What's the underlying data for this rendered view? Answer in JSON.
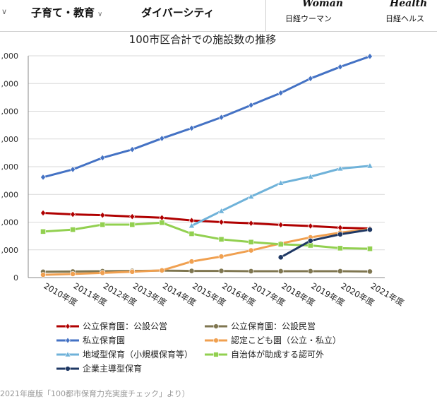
{
  "nav": {
    "left_chevron": "∨",
    "items": [
      {
        "label": "子育て・教育",
        "chevron": "∨"
      },
      {
        "label": "ダイバーシティ"
      }
    ],
    "brands": [
      {
        "logo": "Woman",
        "label": "日経ウーマン"
      },
      {
        "logo": "Health",
        "label": "日経ヘルス"
      }
    ]
  },
  "chart_data": {
    "type": "line",
    "title": "100市区合計での施設数の推移",
    "categories": [
      "2010年度",
      "2011年度",
      "2012年度",
      "2013年度",
      "2014年度",
      "2015年度",
      "2016年度",
      "2017年度",
      "2018年度",
      "2019年度",
      "2020年度",
      "2021年度"
    ],
    "y_tick_labels": [
      ",000",
      ",000",
      ",000",
      ",000",
      ",000",
      ",000",
      ",000",
      ",000",
      "0"
    ],
    "ylim": [
      0,
      8000
    ],
    "y_step": 1000,
    "grid": true,
    "legend_position": "bottom",
    "series": [
      {
        "name": "公立保育園：公設公営",
        "color": "#b00000",
        "marker": "diamond",
        "values": [
          2330,
          2280,
          2250,
          2200,
          2160,
          2060,
          2000,
          1960,
          1900,
          1860,
          1800,
          1770
        ]
      },
      {
        "name": "公立保育園：公設民営",
        "color": "#7f7650",
        "marker": "circle",
        "values": [
          210,
          220,
          230,
          240,
          250,
          240,
          240,
          230,
          230,
          230,
          230,
          220
        ]
      },
      {
        "name": "私立保育園",
        "color": "#4472c4",
        "marker": "diamond",
        "values": [
          3620,
          3900,
          4320,
          4620,
          5020,
          5390,
          5780,
          6220,
          6660,
          7180,
          7600,
          7980
        ]
      },
      {
        "name": "認定こども園（公立・私立）",
        "color": "#f0a050",
        "marker": "circle",
        "values": [
          100,
          130,
          170,
          210,
          260,
          580,
          760,
          980,
          1230,
          1450,
          1620,
          1750
        ]
      },
      {
        "name": "地域型保育（小規模保育等）",
        "color": "#6fb2d9",
        "marker": "triangle",
        "values": [
          null,
          null,
          null,
          null,
          null,
          1870,
          2400,
          2920,
          3410,
          3640,
          3930,
          4030
        ]
      },
      {
        "name": "自治体が助成する認可外",
        "color": "#92d050",
        "marker": "square",
        "values": [
          1660,
          1730,
          1910,
          1910,
          1980,
          1580,
          1380,
          1280,
          1200,
          1160,
          1060,
          1040
        ]
      },
      {
        "name": "企業主導型保育",
        "color": "#1f3864",
        "marker": "circle",
        "values": [
          null,
          null,
          null,
          null,
          null,
          null,
          null,
          null,
          730,
          1330,
          1560,
          1730
        ]
      }
    ]
  },
  "credit": "2021年度版「100都市保育力充実度チェック」より）"
}
